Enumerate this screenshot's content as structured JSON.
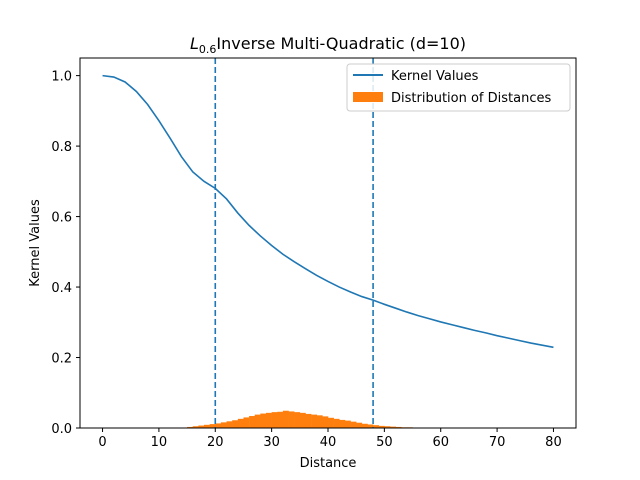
{
  "chart_data": {
    "type": "line",
    "title": {
      "base": "L",
      "subscript": "0.6",
      "rest": "Inverse Multi-Quadratic (d=10)"
    },
    "xlabel": "Distance",
    "ylabel": "Kernel Values",
    "xlim": [
      -4,
      84
    ],
    "ylim": [
      0,
      1.05
    ],
    "xticks": [
      0,
      10,
      20,
      30,
      40,
      50,
      60,
      70,
      80
    ],
    "yticks": [
      0.0,
      0.2,
      0.4,
      0.6,
      0.8,
      1.0
    ],
    "xtick_labels": [
      "0",
      "10",
      "20",
      "30",
      "40",
      "50",
      "60",
      "70",
      "80"
    ],
    "ytick_labels": [
      "0.0",
      "0.2",
      "0.4",
      "0.6",
      "0.8",
      "1.0"
    ],
    "grid": false,
    "legend_position": "top-right",
    "series": [
      {
        "name": "Kernel Values",
        "kind": "line",
        "color": "#1f77b4",
        "x": [
          0,
          2,
          4,
          6,
          8,
          10,
          12,
          14,
          16,
          18,
          20,
          22,
          24,
          26,
          28,
          30,
          32,
          34,
          36,
          38,
          40,
          42,
          44,
          46,
          48,
          50,
          52,
          54,
          56,
          58,
          60,
          62,
          64,
          66,
          68,
          70,
          72,
          74,
          76,
          78,
          80
        ],
        "y": [
          1.0,
          0.996,
          0.982,
          0.955,
          0.918,
          0.872,
          0.822,
          0.77,
          0.727,
          0.7,
          0.68,
          0.65,
          0.61,
          0.575,
          0.545,
          0.518,
          0.493,
          0.472,
          0.452,
          0.433,
          0.416,
          0.4,
          0.386,
          0.373,
          0.363,
          0.351,
          0.34,
          0.329,
          0.319,
          0.31,
          0.301,
          0.293,
          0.285,
          0.277,
          0.27,
          0.262,
          0.255,
          0.248,
          0.241,
          0.235,
          0.229
        ]
      },
      {
        "name": "Distribution of Distances",
        "kind": "histogram",
        "color": "#ff7f0e",
        "bin_width": 1,
        "bin_start": 14,
        "values": [
          0.001,
          0.003,
          0.005,
          0.007,
          0.009,
          0.011,
          0.013,
          0.016,
          0.019,
          0.022,
          0.026,
          0.03,
          0.034,
          0.038,
          0.041,
          0.043,
          0.045,
          0.046,
          0.049,
          0.047,
          0.045,
          0.043,
          0.04,
          0.038,
          0.036,
          0.033,
          0.029,
          0.026,
          0.023,
          0.021,
          0.018,
          0.015,
          0.012,
          0.01,
          0.008,
          0.006,
          0.005,
          0.004,
          0.003,
          0.002,
          0.002,
          0.001
        ]
      }
    ],
    "vlines": [
      {
        "x": 20,
        "color": "#1f77b4",
        "style": "dashed"
      },
      {
        "x": 48,
        "color": "#1f77b4",
        "style": "dashed"
      }
    ]
  }
}
